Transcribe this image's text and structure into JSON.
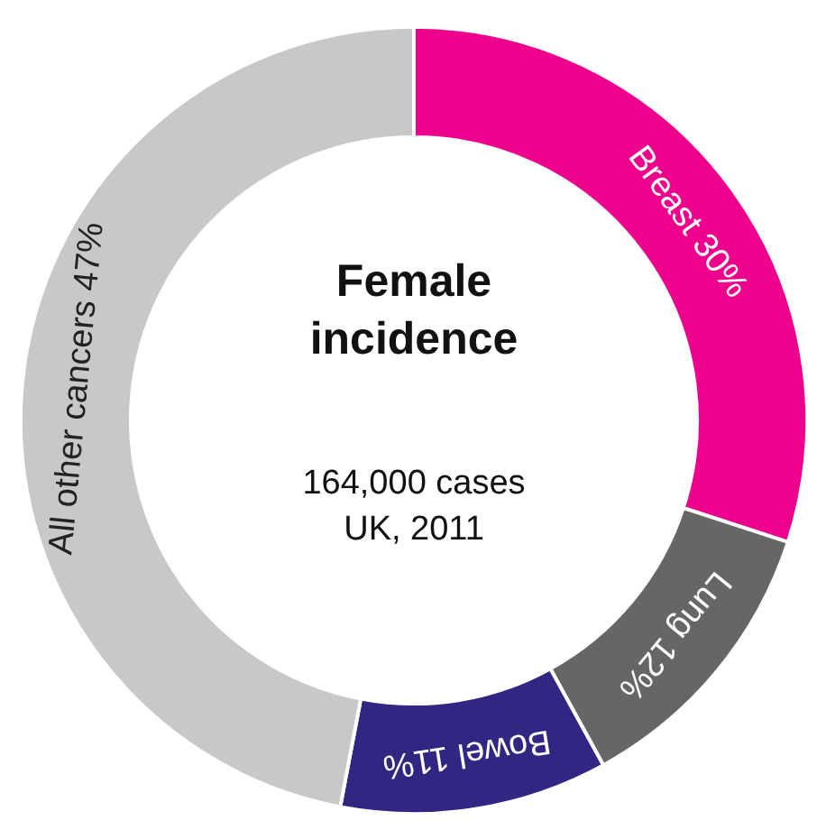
{
  "chart_data": {
    "type": "donut",
    "title": "Female\nincidence",
    "subtitle": "164,000 cases\nUK, 2011",
    "categories": [
      "Breast",
      "Lung",
      "Bowel",
      "All other cancers"
    ],
    "values": [
      30,
      12,
      11,
      47
    ],
    "value_labels": [
      "30%",
      "12%",
      "11%",
      "47%"
    ],
    "colors": [
      "#ec008c",
      "#666666",
      "#312783",
      "#c8c8c8"
    ],
    "legend": false
  }
}
